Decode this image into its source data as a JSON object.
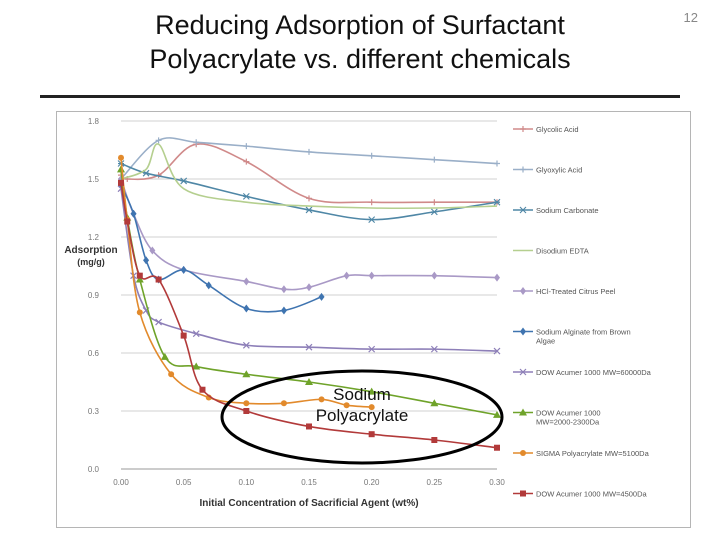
{
  "slide": {
    "title_line1": "Reducing Adsorption of Surfactant",
    "title_line2": "Polyacrylate vs. different chemicals",
    "page_number": "12",
    "annotation_line1": "Sodium",
    "annotation_line2": "Polyacrylate"
  },
  "chart_data": {
    "type": "line",
    "title": "",
    "xlabel": "Initial Concentration of Sacrificial Agent (wt%)",
    "ylabel_line1": "Adsorption",
    "ylabel_line2": "(mg/g)",
    "xlim": [
      0,
      0.3
    ],
    "ylim": [
      0,
      1.8
    ],
    "x_ticks": [
      "0.00",
      "0.05",
      "0.10",
      "0.15",
      "0.20",
      "0.25",
      "0.30"
    ],
    "y_ticks": [
      "0.0",
      "0.3",
      "0.6",
      "0.9",
      "1.2",
      "1.5",
      "1.8"
    ],
    "grid": "horizontal",
    "legend_position": "right",
    "series": [
      {
        "name": "Glycolic Acid",
        "color": "#d08a8a",
        "marker": "plus",
        "x": [
          0.0,
          0.005,
          0.03,
          0.06,
          0.1,
          0.15,
          0.2,
          0.25,
          0.3
        ],
        "y": [
          1.52,
          1.5,
          1.52,
          1.68,
          1.59,
          1.4,
          1.38,
          1.38,
          1.38
        ]
      },
      {
        "name": "Glyoxylic Acid",
        "color": "#9aafc8",
        "marker": "plus",
        "x": [
          0.0,
          0.03,
          0.06,
          0.1,
          0.15,
          0.2,
          0.25,
          0.3
        ],
        "y": [
          1.5,
          1.7,
          1.69,
          1.67,
          1.64,
          1.62,
          1.6,
          1.58
        ]
      },
      {
        "name": "Sodium Carbonate",
        "color": "#4f87a6",
        "marker": "star",
        "x": [
          0.0,
          0.02,
          0.05,
          0.1,
          0.15,
          0.2,
          0.25,
          0.3
        ],
        "y": [
          1.58,
          1.53,
          1.49,
          1.41,
          1.34,
          1.29,
          1.33,
          1.38
        ]
      },
      {
        "name": "Disodium EDTA",
        "color": "#b5cf8f",
        "marker": "none",
        "x": [
          0.0,
          0.02,
          0.03,
          0.05,
          0.1,
          0.15,
          0.2,
          0.25,
          0.3
        ],
        "y": [
          1.5,
          1.55,
          1.68,
          1.45,
          1.38,
          1.36,
          1.35,
          1.35,
          1.36
        ]
      },
      {
        "name": "HCl-Treated Citrus Peel",
        "color": "#a999c6",
        "marker": "diamond",
        "x": [
          0.0,
          0.01,
          0.025,
          0.05,
          0.1,
          0.13,
          0.15,
          0.18,
          0.2,
          0.25,
          0.3
        ],
        "y": [
          1.5,
          1.32,
          1.13,
          1.03,
          0.97,
          0.93,
          0.94,
          1.0,
          1.0,
          1.0,
          0.99
        ]
      },
      {
        "name": "Sodium Alginate from Brown Algae",
        "color": "#3f74b0",
        "marker": "diamond",
        "x": [
          0.0,
          0.01,
          0.02,
          0.03,
          0.05,
          0.07,
          0.1,
          0.13,
          0.16
        ],
        "y": [
          1.47,
          1.32,
          1.08,
          0.98,
          1.03,
          0.95,
          0.83,
          0.82,
          0.89
        ]
      },
      {
        "name": "DOW Acumer 1000 MW=60000Da",
        "color": "#8d7fb8",
        "marker": "cross",
        "x": [
          0.0,
          0.01,
          0.02,
          0.03,
          0.06,
          0.1,
          0.15,
          0.2,
          0.25,
          0.3
        ],
        "y": [
          1.45,
          1.0,
          0.82,
          0.76,
          0.7,
          0.64,
          0.63,
          0.62,
          0.62,
          0.61
        ]
      },
      {
        "name": "DOW Acumer 1000 MW=2000-2300Da",
        "color": "#6fa32a",
        "marker": "triangle",
        "x": [
          0.0,
          0.005,
          0.015,
          0.035,
          0.06,
          0.1,
          0.15,
          0.2,
          0.25,
          0.3
        ],
        "y": [
          1.55,
          1.3,
          0.98,
          0.58,
          0.53,
          0.49,
          0.45,
          0.4,
          0.34,
          0.28
        ]
      },
      {
        "name": "SIGMA Polyacrylate MW=5100Da",
        "color": "#e28a2c",
        "marker": "circle",
        "x": [
          0.0,
          0.005,
          0.015,
          0.04,
          0.07,
          0.1,
          0.13,
          0.16,
          0.18,
          0.2
        ],
        "y": [
          1.61,
          1.29,
          0.81,
          0.49,
          0.37,
          0.34,
          0.34,
          0.36,
          0.33,
          0.32
        ]
      },
      {
        "name": "DOW Acumer 1000 MW=4500Da",
        "color": "#b23a3a",
        "marker": "square",
        "x": [
          0.0,
          0.005,
          0.015,
          0.03,
          0.05,
          0.065,
          0.1,
          0.15,
          0.2,
          0.25,
          0.3
        ],
        "y": [
          1.48,
          1.28,
          1.0,
          0.98,
          0.69,
          0.41,
          0.3,
          0.22,
          0.18,
          0.15,
          0.11
        ]
      }
    ]
  }
}
